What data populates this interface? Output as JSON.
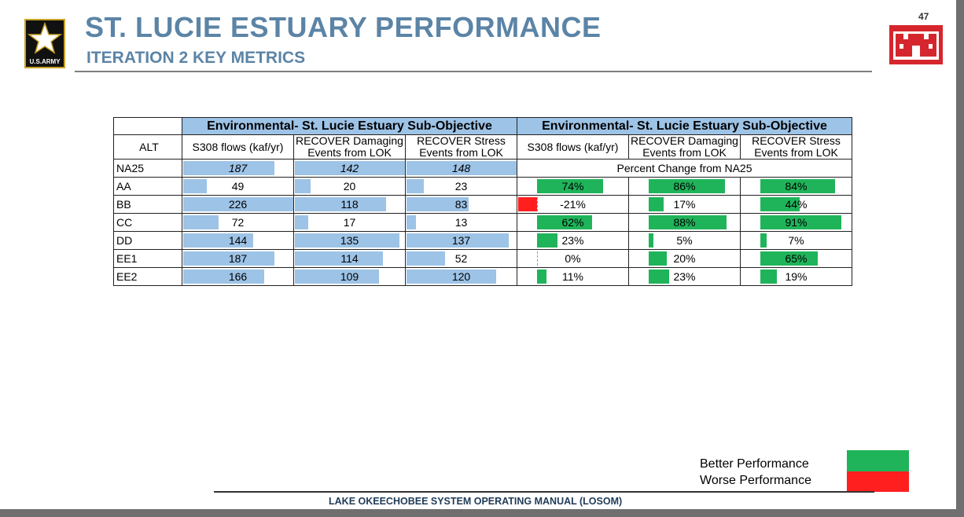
{
  "header": {
    "title": "ST. LUCIE ESTUARY PERFORMANCE",
    "subtitle": "ITERATION 2 KEY METRICS",
    "page_number": "47",
    "army_logo_text": "U.S.ARMY"
  },
  "table": {
    "group_header_left": "Environmental- St. Lucie Estuary Sub-Objective",
    "group_header_right": "Environmental- St. Lucie Estuary Sub-Objective",
    "alt_header": "ALT",
    "col_left": [
      "S308 flows (kaf/yr)",
      "RECOVER Damaging Events from LOK",
      "RECOVER Stress Events from LOK"
    ],
    "col_right": [
      "S308 flows (kaf/yr)",
      "RECOVER Damaging Events from LOK",
      "RECOVER Stress Events from LOK"
    ],
    "baseline": {
      "alt": "NA25",
      "values": [
        "187",
        "142",
        "148"
      ],
      "label": "Percent Change from NA25"
    },
    "rows": [
      {
        "alt": "AA",
        "values": [
          "49",
          "20",
          "23"
        ],
        "pct": [
          "74%",
          "86%",
          "84%"
        ],
        "pct_num": [
          74,
          86,
          84
        ]
      },
      {
        "alt": "BB",
        "values": [
          "226",
          "118",
          "83"
        ],
        "pct": [
          "-21%",
          "17%",
          "44%"
        ],
        "pct_num": [
          -21,
          17,
          44
        ]
      },
      {
        "alt": "CC",
        "values": [
          "72",
          "17",
          "13"
        ],
        "pct": [
          "62%",
          "88%",
          "91%"
        ],
        "pct_num": [
          62,
          88,
          91
        ]
      },
      {
        "alt": "DD",
        "values": [
          "144",
          "135",
          "137"
        ],
        "pct": [
          "23%",
          "5%",
          "7%"
        ],
        "pct_num": [
          23,
          5,
          7
        ]
      },
      {
        "alt": "EE1",
        "values": [
          "187",
          "114",
          "52"
        ],
        "pct": [
          "0%",
          "20%",
          "65%"
        ],
        "pct_num": [
          0,
          20,
          65
        ]
      },
      {
        "alt": "EE2",
        "values": [
          "166",
          "109",
          "120"
        ],
        "pct": [
          "11%",
          "23%",
          "19%"
        ],
        "pct_num": [
          11,
          23,
          19
        ]
      }
    ],
    "bar_max": [
      226,
      142,
      148
    ]
  },
  "legend": {
    "better": "Better Performance",
    "worse": "Worse Performance",
    "better_color": "#1fb45a",
    "worse_color": "#ff1f1f"
  },
  "footer": {
    "text": "LAKE OKEECHOBEE SYSTEM OPERATING MANUAL (LOSOM)"
  }
}
